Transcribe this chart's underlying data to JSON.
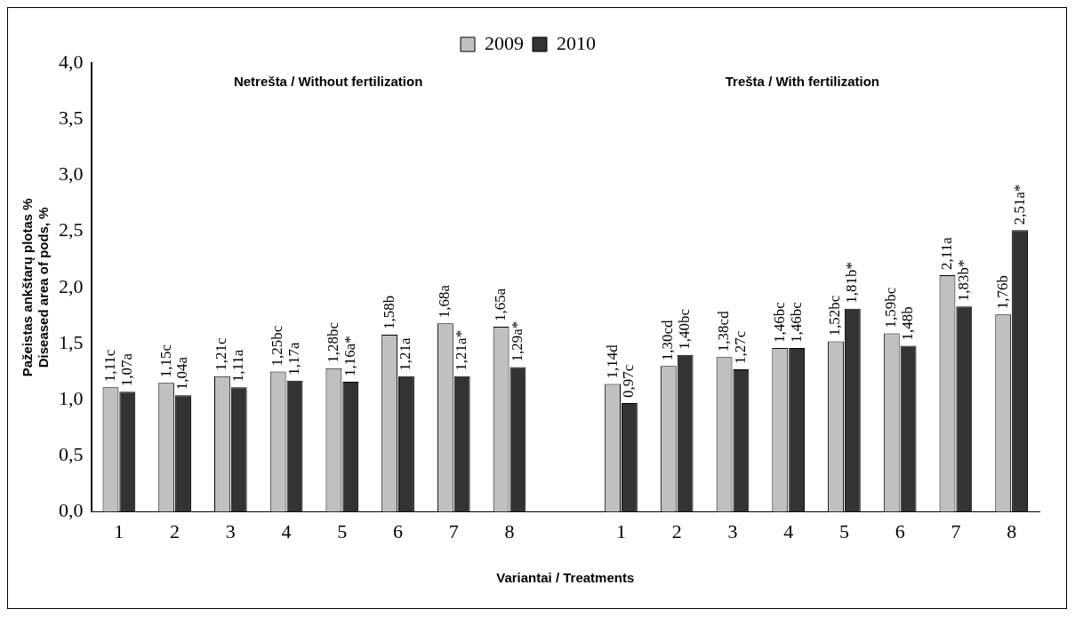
{
  "chart_data": {
    "type": "bar",
    "ylabel": "Pažeistas ankštarų plotas %\nDiseased area of pods, %",
    "xlabel": "Variantai / Treatments",
    "categories": [
      "1",
      "2",
      "3",
      "4",
      "5",
      "6",
      "7",
      "8",
      null,
      "1",
      "2",
      "3",
      "4",
      "5",
      "6",
      "7",
      "8"
    ],
    "series": [
      {
        "name": "2009",
        "color": "#c0c0c0",
        "values": [
          1.11,
          1.15,
          1.21,
          1.25,
          1.28,
          1.58,
          1.68,
          1.65,
          null,
          1.14,
          1.3,
          1.38,
          1.46,
          1.52,
          1.59,
          2.11,
          1.76
        ],
        "value_labels": [
          "1,11c",
          "1,15c",
          "1,21c",
          "1,25bc",
          "1,28bc",
          "1,58b",
          "1,68a",
          "1,65a",
          null,
          "1,14d",
          "1,30cd",
          "1,38cd",
          "1,46bc",
          "1,52bc",
          "1,59bc",
          "2,11a",
          "1,76b"
        ]
      },
      {
        "name": "2010",
        "color": "#333333",
        "values": [
          1.07,
          1.04,
          1.11,
          1.17,
          1.16,
          1.21,
          1.21,
          1.29,
          null,
          0.97,
          1.4,
          1.27,
          1.46,
          1.81,
          1.48,
          1.83,
          2.51
        ],
        "value_labels": [
          "1,07a",
          "1,04a",
          "1,11a",
          "1,17a",
          "1,16a*",
          "1,21a",
          "1,21a*",
          "1,29a*",
          null,
          "0,97c",
          "1,40bc",
          "1,27c",
          "1,46bc",
          "1,81b*",
          "1,48b",
          "1,83b*",
          "2,51a*"
        ]
      }
    ],
    "ylim": [
      0,
      4
    ],
    "yticks": [
      {
        "value": 0,
        "label": "0,0"
      },
      {
        "value": 0.5,
        "label": "0,5"
      },
      {
        "value": 1,
        "label": "1,0"
      },
      {
        "value": 1.5,
        "label": "1,5"
      },
      {
        "value": 2,
        "label": "2,0"
      },
      {
        "value": 2.5,
        "label": "2,5"
      },
      {
        "value": 3,
        "label": "3,0"
      },
      {
        "value": 3.5,
        "label": "3,5"
      },
      {
        "value": 4,
        "label": "4,0"
      }
    ],
    "grid": false,
    "legend": "top",
    "annotations": [
      "Netrešta / Without fertilization",
      "Trešta / With fertilization"
    ]
  }
}
